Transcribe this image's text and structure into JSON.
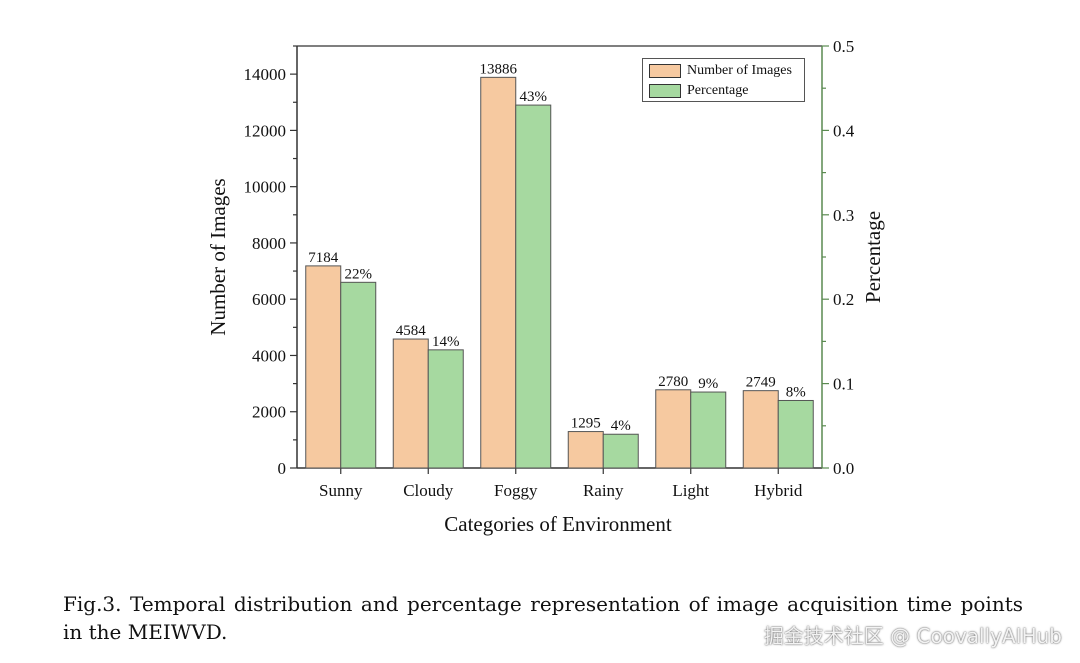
{
  "chart_data": {
    "type": "bar",
    "categories": [
      "Sunny",
      "Cloudy",
      "Foggy",
      "Rainy",
      "Light",
      "Hybrid"
    ],
    "series": [
      {
        "name": "Number of Images",
        "axis": "left",
        "values": [
          7184,
          4584,
          13886,
          1295,
          2780,
          2749
        ],
        "labels": [
          "7184",
          "4584",
          "13886",
          "1295",
          "2780",
          "2749"
        ],
        "color": "#f6c9a0"
      },
      {
        "name": "Percentage",
        "axis": "right",
        "values": [
          0.22,
          0.14,
          0.43,
          0.04,
          0.09,
          0.08
        ],
        "labels": [
          "22%",
          "14%",
          "43%",
          "4%",
          "9%",
          "8%"
        ],
        "color": "#a6d9a0"
      }
    ],
    "xlabel": "Categories of Environment",
    "ylabel": "Number of Images",
    "y2label": "Percentage",
    "ylim": [
      0,
      15000
    ],
    "y2lim": [
      0,
      0.5
    ],
    "yticks": [
      "0",
      "2000",
      "4000",
      "6000",
      "8000",
      "10000",
      "12000",
      "14000"
    ],
    "yticks_values": [
      0,
      2000,
      4000,
      6000,
      8000,
      10000,
      12000,
      14000
    ],
    "y2ticks": [
      "0.0",
      "0.1",
      "0.2",
      "0.3",
      "0.4",
      "0.5"
    ],
    "y2ticks_values": [
      0,
      0.1,
      0.2,
      0.3,
      0.4,
      0.5
    ],
    "legend_position": "top-right",
    "grid": false,
    "left_axis_color": "#333333",
    "right_axis_color": "#5a8a50"
  },
  "caption": "Fig.3.  Temporal distribution and percentage representation of image acquisition time points in the MEIWVD.",
  "watermark": "掘金技术社区 @ CoovallyAIHub"
}
